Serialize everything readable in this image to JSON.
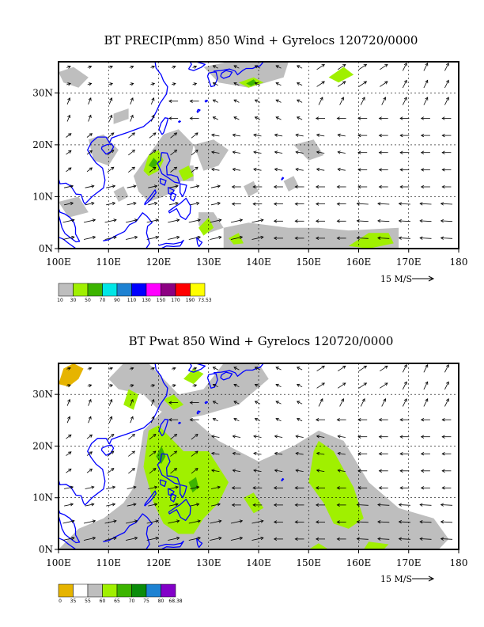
{
  "panels": [
    {
      "title": "BT PRECIP(mm) 850 Wind + Gyrelocs 120720/0000",
      "x_ticks": [
        "100E",
        "110E",
        "120E",
        "130E",
        "140E",
        "150E",
        "160E",
        "170E",
        "180"
      ],
      "y_ticks": [
        "0N",
        "10N",
        "20N",
        "30N"
      ],
      "vector_scale_label": "15 M/S",
      "legend": {
        "labels": [
          "10",
          "30",
          "50",
          "70",
          "90",
          "110",
          "130",
          "150",
          "170",
          "190",
          "73.53"
        ],
        "colors": [
          "#bebebe",
          "#a0f000",
          "#3cb400",
          "#00e6e6",
          "#1e82d2",
          "#0000ff",
          "#ff00ff",
          "#8c0082",
          "#ff0000",
          "#ffff00"
        ]
      }
    },
    {
      "title": "BT Pwat 850 Wind + Gyrelocs 120720/0000",
      "x_ticks": [
        "100E",
        "110E",
        "120E",
        "130E",
        "140E",
        "150E",
        "160E",
        "170E",
        "180"
      ],
      "y_ticks": [
        "0N",
        "10N",
        "20N",
        "30N"
      ],
      "vector_scale_label": "15 M/S",
      "legend": {
        "labels": [
          "0",
          "35",
          "55",
          "60",
          "65",
          "70",
          "75",
          "80",
          "68.38"
        ],
        "colors": [
          "#e6b400",
          "#ffffff",
          "#bebebe",
          "#a0f000",
          "#3cb400",
          "#0a8c0a",
          "#1e82d2",
          "#8200c8"
        ]
      }
    }
  ],
  "map": {
    "lon_range": [
      100,
      180
    ],
    "lat_range": [
      0,
      36
    ],
    "coast_color": "#0000ff",
    "grid_lon": [
      110,
      120,
      130,
      140,
      150,
      160,
      170
    ],
    "grid_lat": [
      10,
      20,
      30
    ]
  }
}
